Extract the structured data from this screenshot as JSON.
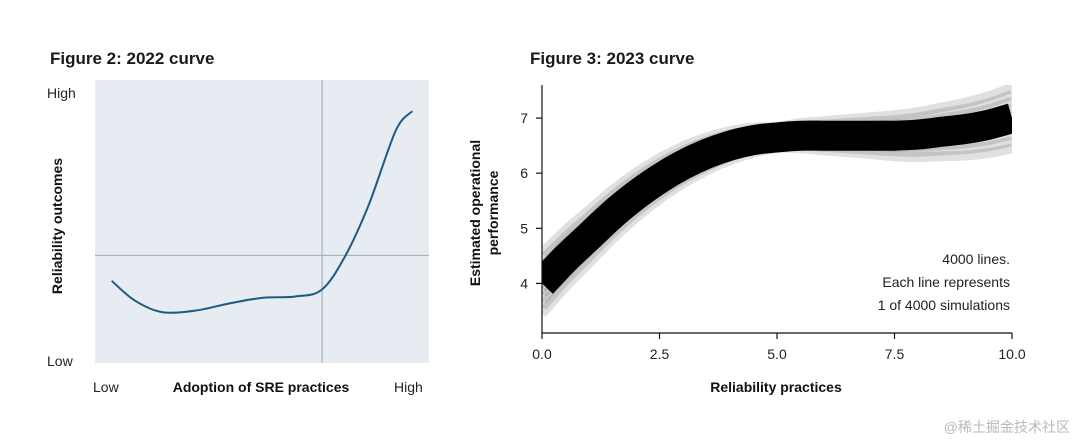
{
  "watermark": "@稀土掘金技术社区",
  "chart_data": [
    {
      "type": "line",
      "title": "Figure 2: 2022 curve",
      "xlabel": "Adoption of SRE practices",
      "ylabel": "Reliability outcomes",
      "x_tick_labels": [
        "Low",
        "High"
      ],
      "y_tick_labels": [
        "High",
        "Low"
      ],
      "xlim": [
        0,
        1
      ],
      "ylim": [
        0,
        1
      ],
      "grid": false,
      "background": "#e6ecf1",
      "line_color": "#1f5a85",
      "reference_lines": {
        "x": 0.68,
        "y": 0.38
      },
      "series": [
        {
          "x": [
            0.05,
            0.12,
            0.2,
            0.3,
            0.4,
            0.5,
            0.6,
            0.68,
            0.75,
            0.82,
            0.9,
            0.95
          ],
          "y": [
            0.29,
            0.22,
            0.18,
            0.185,
            0.21,
            0.23,
            0.235,
            0.26,
            0.38,
            0.56,
            0.82,
            0.89
          ]
        }
      ]
    },
    {
      "type": "line",
      "title": "Figure 3: 2023 curve",
      "xlabel": "Reliability practices",
      "ylabel": "Estimated operational performance",
      "xlim": [
        0,
        10
      ],
      "ylim": [
        3.1,
        7.6
      ],
      "x_ticks": [
        0,
        2.5,
        5,
        7.5,
        10
      ],
      "x_tick_labels": [
        "0.0",
        "2.5",
        "5.0",
        "7.5",
        "10.0"
      ],
      "y_ticks": [
        4,
        5,
        6,
        7
      ],
      "y_tick_labels": [
        "4",
        "5",
        "6",
        "7"
      ],
      "grid": false,
      "line_color": "#000000",
      "annotation": [
        "4000 lines.",
        "Each line represents",
        "1 of 4000 simulations"
      ],
      "series": [
        {
          "x": [
            0,
            0.5,
            1,
            1.5,
            2,
            2.5,
            3,
            3.5,
            4,
            4.5,
            5,
            5.5,
            6,
            6.5,
            7,
            7.5,
            8,
            8.5,
            9,
            9.5,
            10
          ],
          "y": [
            4.0,
            4.45,
            4.85,
            5.25,
            5.6,
            5.9,
            6.15,
            6.35,
            6.5,
            6.6,
            6.65,
            6.68,
            6.68,
            6.68,
            6.68,
            6.68,
            6.7,
            6.75,
            6.8,
            6.88,
            7.0
          ]
        }
      ]
    }
  ]
}
